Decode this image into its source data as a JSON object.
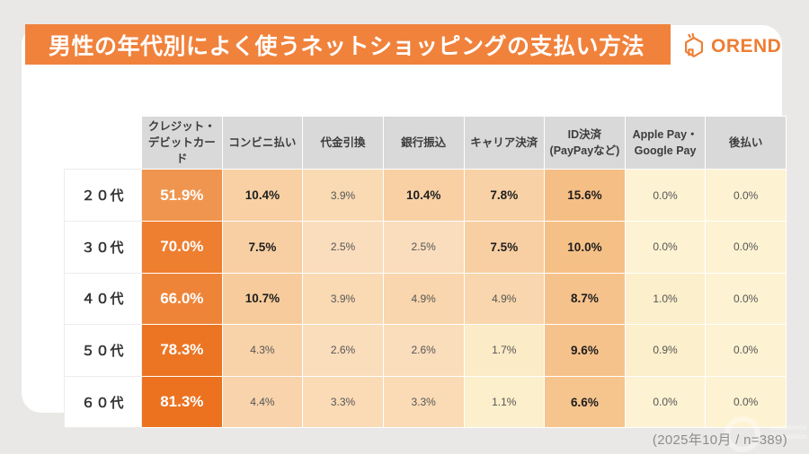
{
  "page": {
    "title": "男性の年代別によく使うネットショッピングの支払い方法",
    "logo_text": "OREND",
    "footnote": "(2025年10月 /  n=389)",
    "watermark": {
      "line1": "commerce",
      "line2": "innovation"
    },
    "colors": {
      "banner": "#F0823C",
      "logo": "#ED7E33",
      "header_bg": "#D9D9D9",
      "page_bg": "#E9E8E6"
    }
  },
  "chart_data": {
    "type": "heatmap",
    "title": "男性の年代別によく使うネットショッピングの支払い方法",
    "unit": "%",
    "columns": [
      "クレジット・デビットカード",
      "コンビニ払い",
      "代金引換",
      "銀行振込",
      "キャリア決済",
      "ID決済(PayPayなど)",
      "Apple Pay・Google Pay",
      "後払い"
    ],
    "column_lines": [
      [
        "クレジット・",
        "デビットカード"
      ],
      [
        "コンビニ払い"
      ],
      [
        "代金引換"
      ],
      [
        "銀行振込"
      ],
      [
        "キャリア決済"
      ],
      [
        "ID決済",
        "(PayPayなど)"
      ],
      [
        "Apple Pay・",
        "Google Pay"
      ],
      [
        "後払い"
      ]
    ],
    "rows": [
      "２０代",
      "３０代",
      "４０代",
      "５０代",
      "６０代"
    ],
    "values": [
      [
        51.9,
        10.4,
        3.9,
        10.4,
        7.8,
        15.6,
        0.0,
        0.0
      ],
      [
        70.0,
        7.5,
        2.5,
        2.5,
        7.5,
        10.0,
        0.0,
        0.0
      ],
      [
        66.0,
        10.7,
        3.9,
        4.9,
        4.9,
        8.7,
        1.0,
        0.0
      ],
      [
        78.3,
        4.3,
        2.6,
        2.6,
        1.7,
        9.6,
        0.9,
        0.0
      ],
      [
        81.3,
        4.4,
        3.3,
        3.3,
        1.1,
        6.6,
        0.0,
        0.0
      ]
    ],
    "cell_colors": [
      [
        "#F0954F",
        "#F8D0A4",
        "#FADAB3",
        "#F8D0A4",
        "#F8D1A6",
        "#F5BE85",
        "#FDF2D2",
        "#FDF2D2"
      ],
      [
        "#EE7E30",
        "#F8CFA3",
        "#FADDBC",
        "#FADDBC",
        "#F8CFA3",
        "#F5C085",
        "#FDF2D2",
        "#FDF2D2"
      ],
      [
        "#EE8438",
        "#F7CB9B",
        "#FADAB3",
        "#F9D6AD",
        "#F9D6AD",
        "#F6C28B",
        "#FCEFCB",
        "#FDF2D2"
      ],
      [
        "#EC7524",
        "#F8D2A9",
        "#FADDBB",
        "#FADDBB",
        "#FBEBC6",
        "#F6C28B",
        "#FCEFCB",
        "#FDF2D2"
      ],
      [
        "#EC7220",
        "#F8D3AC",
        "#FADBB6",
        "#FADBB6",
        "#FCEFCB",
        "#F6C48D",
        "#FDF2D2",
        "#FDF2D2"
      ]
    ],
    "bold_threshold": 6.5,
    "note": "(2025年10月 /  n=389)",
    "legend_position": "none",
    "grid": false
  }
}
